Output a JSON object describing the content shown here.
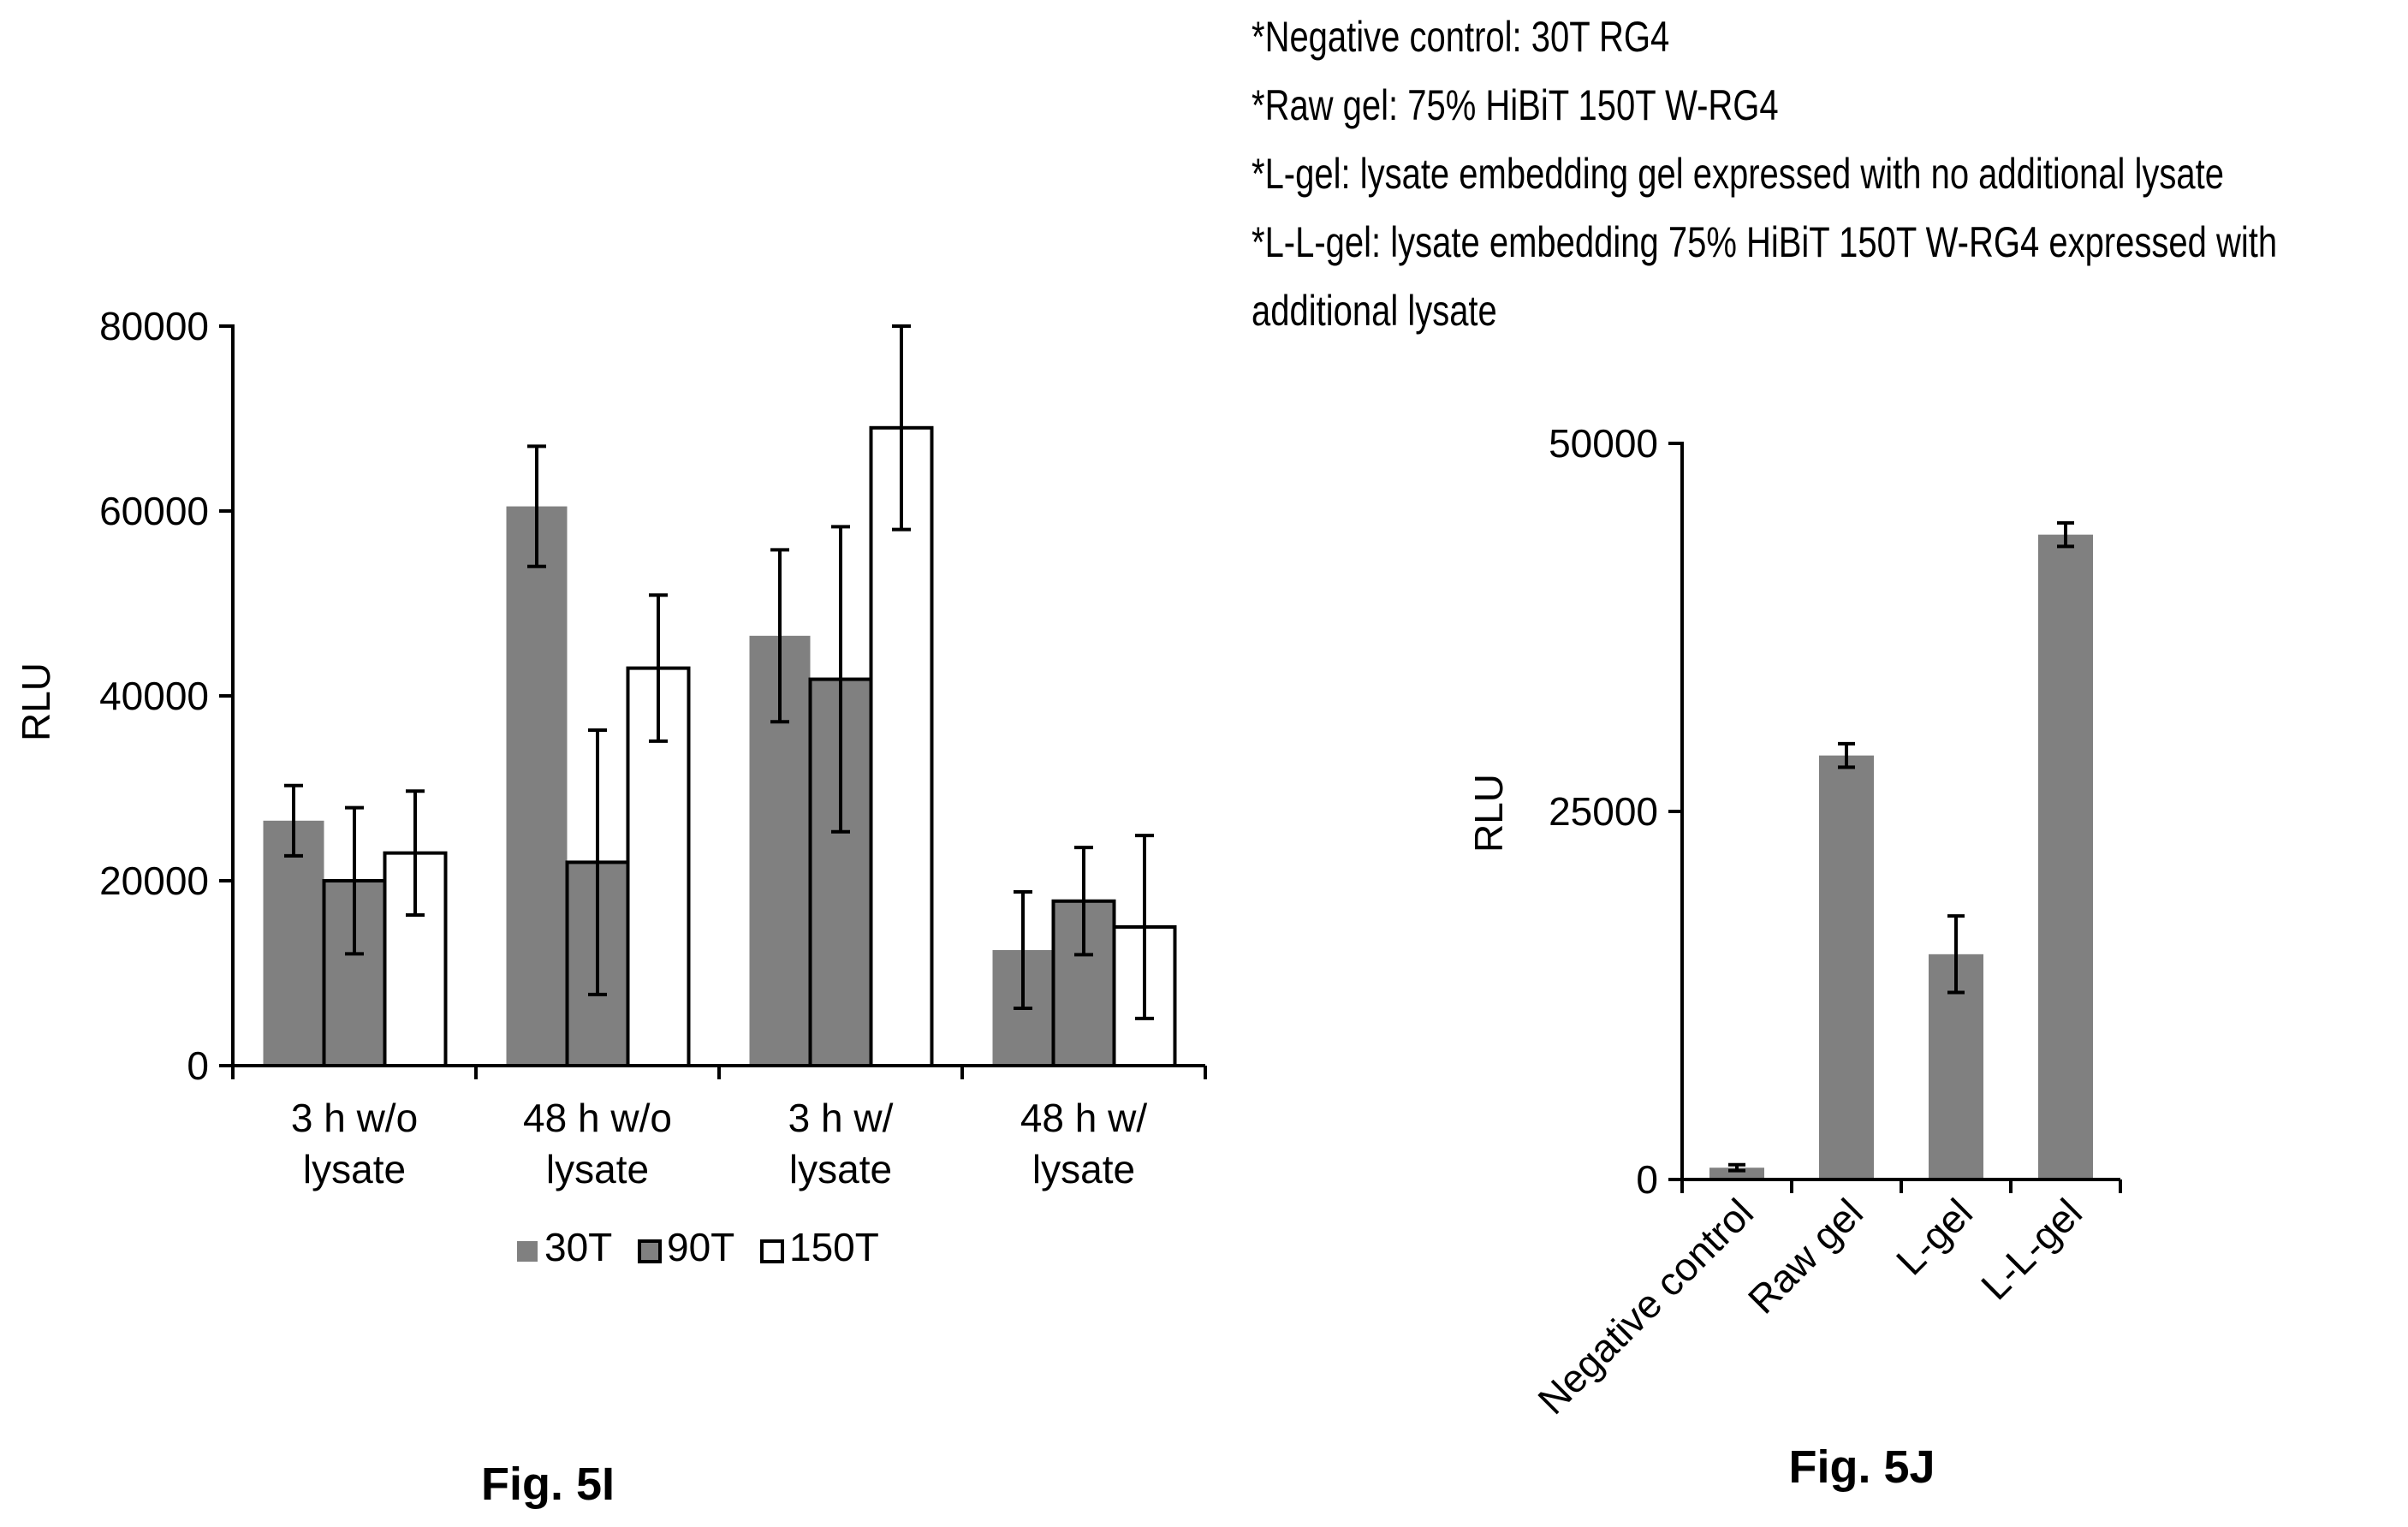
{
  "chart_data": [
    {
      "type": "bar",
      "caption": "Fig. 5I",
      "ylabel": "RLU",
      "xlabel": "",
      "ylim": [
        0,
        80000
      ],
      "yticks": [
        0,
        20000,
        40000,
        60000,
        80000
      ],
      "categories": [
        [
          "3 h w/o",
          "lysate"
        ],
        [
          "48 h w/o",
          "lysate"
        ],
        [
          "3 h w/",
          "lysate"
        ],
        [
          "48 h w/",
          "lysate"
        ]
      ],
      "series": [
        {
          "name": "30T",
          "color": "#808080",
          "stroke": "none",
          "values": [
            26500,
            60500,
            46500,
            12500
          ],
          "errors": [
            3800,
            6500,
            9300,
            6300
          ]
        },
        {
          "name": "90T",
          "color": "#808080",
          "stroke": "#000000",
          "values": [
            20000,
            22000,
            41800,
            17800
          ],
          "errors": [
            7900,
            14300,
            16500,
            5800
          ]
        },
        {
          "name": "150T",
          "color": "#ffffff",
          "stroke": "#000000",
          "values": [
            23000,
            43000,
            69000,
            15000
          ],
          "errors": [
            6700,
            7900,
            11000,
            9900
          ]
        }
      ],
      "legend": "bottom",
      "grid": false
    },
    {
      "type": "bar",
      "caption": "Fig. 5J",
      "ylabel": "RLU",
      "xlabel": "",
      "ylim": [
        0,
        50000
      ],
      "yticks": [
        0,
        25000,
        50000
      ],
      "categories": [
        "Negative control",
        "Raw gel",
        "L-gel",
        "L-L-gel"
      ],
      "series": [
        {
          "name": "",
          "color": "#808080",
          "values": [
            800,
            28800,
            15300,
            43800
          ],
          "errors": [
            200,
            800,
            2600,
            800
          ]
        }
      ],
      "grid": false,
      "notes": [
        "*Negative control:  30T RG4",
        "*Raw gel:  75% HiBiT 150T W-RG4",
        "*L-gel:  lysate  embedding gel expressed with no additional lysate",
        "*L-L-gel:  lysate  embedding 75% HiBiT 150T W-RG4  expressed with",
        "additional lysate"
      ]
    }
  ]
}
